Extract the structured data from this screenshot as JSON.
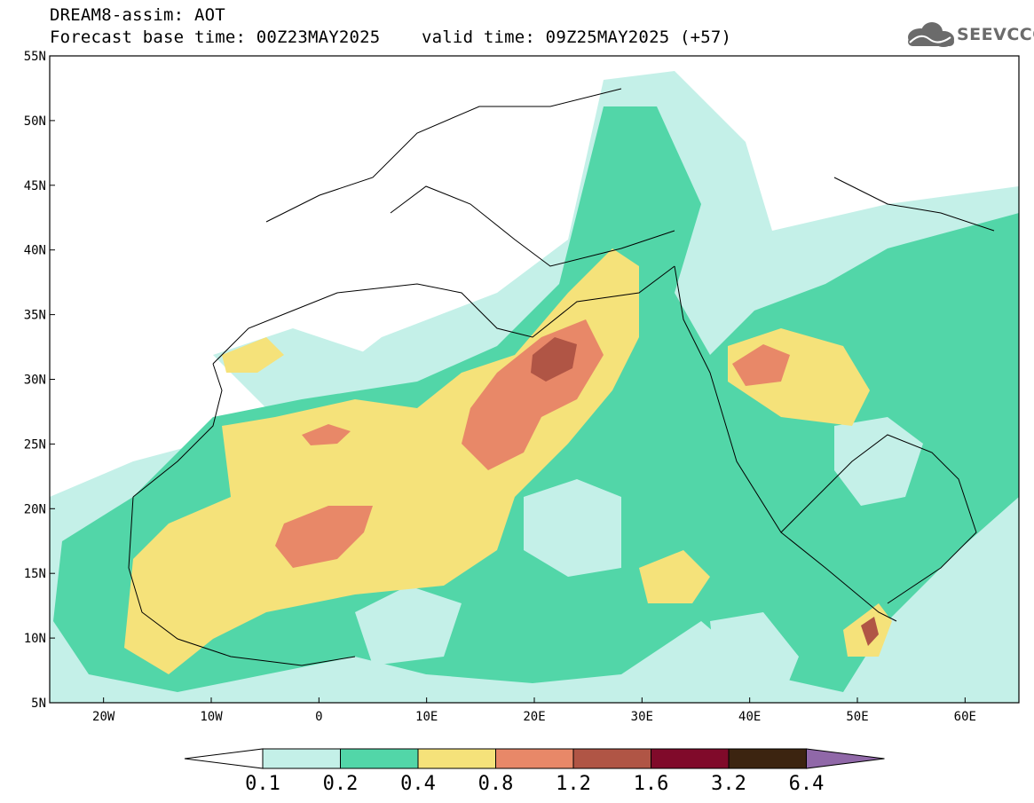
{
  "header": {
    "title": "DREAM8-assim: AOT",
    "base_time": "Forecast base time: 00Z23MAY2025",
    "valid_time": "valid time: 09Z25MAY2025 (+57)",
    "logo_text": "SEEVCCC"
  },
  "axes": {
    "lat_labels": [
      "55N",
      "50N",
      "45N",
      "40N",
      "35N",
      "30N",
      "25N",
      "20N",
      "15N",
      "10N",
      "5N"
    ],
    "lon_labels": [
      "20W",
      "10W",
      "0",
      "10E",
      "20E",
      "30E",
      "40E",
      "50E",
      "60E"
    ],
    "lat_range": [
      5,
      55
    ],
    "lon_range": [
      -25,
      65
    ]
  },
  "colorbar": {
    "labels": [
      "0.1",
      "0.2",
      "0.4",
      "0.8",
      "1.2",
      "1.6",
      "3.2",
      "6.4"
    ],
    "colors": [
      "#c4f0e8",
      "#52d6a8",
      "#f5e27a",
      "#e88868",
      "#b05545",
      "#800a2a",
      "#3c2410",
      "#9068a8"
    ],
    "under_color": "#ffffff"
  }
}
